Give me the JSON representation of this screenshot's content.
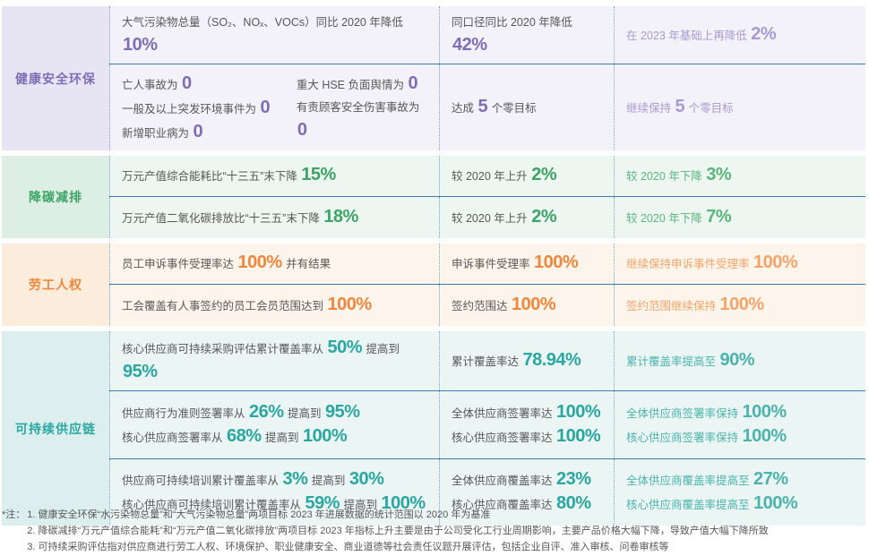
{
  "colors": {
    "row_divider": "#3d7dad",
    "column_divider_dotted": "#74a4cd",
    "body_text": "#595757"
  },
  "sections": [
    {
      "label": "健康安全环保",
      "colors": {
        "accent": "#7f6eb5",
        "light": "#a89bd1",
        "category_bg": "#e7e4f3",
        "row_bg": "#f3f2f9"
      },
      "rows": [
        {
          "goal": [
            [
              "大气污染物总量（SO₂、NOₓ、VOCs）同比 2020 年降低 ",
              {
                "n": "10%"
              }
            ]
          ],
          "progress": [
            [
              "同口径同比 2020 年降低 ",
              {
                "n": "42%"
              }
            ]
          ],
          "future": [
            [
              "在 2023 年基础上再降低 ",
              {
                "n": "2%"
              }
            ]
          ]
        },
        {
          "goal_left": [
            [
              "亡人事故为 ",
              {
                "n": "0"
              }
            ],
            [
              "一般及以上突发环境事件为 ",
              {
                "n": "0"
              }
            ],
            [
              "新增职业病为 ",
              {
                "n": "0"
              }
            ]
          ],
          "goal_right": [
            [
              "重大 HSE 负面舆情为 ",
              {
                "n": "0"
              }
            ],
            [
              "有责顾客安全伤害事故为 ",
              {
                "n": "0"
              }
            ]
          ],
          "progress": [
            [
              "达成 ",
              {
                "n": "5"
              },
              " 个零目标"
            ]
          ],
          "future": [
            [
              "继续保持 ",
              {
                "n": "5"
              },
              " 个零目标"
            ]
          ]
        }
      ]
    },
    {
      "label": "降碳减排",
      "colors": {
        "accent": "#3ca466",
        "light": "#5cb57f",
        "category_bg": "#ddefe4",
        "row_bg": "#edf6f0"
      },
      "rows": [
        {
          "goal": [
            [
              "万元产值综合能耗比“十三五”末下降 ",
              {
                "n": "15%"
              }
            ]
          ],
          "progress": [
            [
              "较 2020 年上升 ",
              {
                "n": "2%"
              }
            ]
          ],
          "future": [
            [
              "较 2020 年下降 ",
              {
                "n": "3%"
              }
            ]
          ]
        },
        {
          "goal": [
            [
              "万元产值二氧化碳排放比“十三五”末下降 ",
              {
                "n": "18%"
              }
            ]
          ],
          "progress": [
            [
              "较 2020 年上升 ",
              {
                "n": "2%"
              }
            ]
          ],
          "future": [
            [
              "较 2020 年下降 ",
              {
                "n": "7%"
              }
            ]
          ]
        }
      ]
    },
    {
      "label": "劳工人权",
      "colors": {
        "accent": "#f0863b",
        "light": "#f4a468",
        "category_bg": "#fcecdb",
        "row_bg": "#fdf5ec"
      },
      "rows": [
        {
          "goal": [
            [
              "员工申诉事件受理率达 ",
              {
                "n": "100%"
              },
              " 并有结果"
            ]
          ],
          "progress": [
            [
              "申诉事件受理率 ",
              {
                "n": "100%"
              }
            ]
          ],
          "future": [
            [
              "继续保持申诉事件受理率 ",
              {
                "n": "100%"
              }
            ]
          ]
        },
        {
          "goal": [
            [
              "工会覆盖有人事签约的员工会员范围达到 ",
              {
                "n": "100%"
              }
            ]
          ],
          "progress": [
            [
              "签约范围达 ",
              {
                "n": "100%"
              }
            ]
          ],
          "future": [
            [
              "签约范围继续保持 ",
              {
                "n": "100%"
              }
            ]
          ]
        }
      ]
    },
    {
      "label": "可持续供应链",
      "colors": {
        "accent": "#29a7a0",
        "light": "#4cb4ad",
        "category_bg": "#dcefee",
        "row_bg": "#ebf5f4"
      },
      "rows": [
        {
          "goal": [
            [
              "核心供应商可持续采购评估累计覆盖率从 ",
              {
                "n": "50%"
              },
              " 提高到 ",
              {
                "n": "95%"
              }
            ]
          ],
          "progress": [
            [
              "累计覆盖率达 ",
              {
                "n": "78.94%"
              }
            ]
          ],
          "future": [
            [
              "累计覆盖率提高至 ",
              {
                "n": "90%"
              }
            ]
          ]
        },
        {
          "goal": [
            [
              "供应商行为准则签署率从 ",
              {
                "n": "26%"
              },
              " 提高到 ",
              {
                "n": "95%"
              }
            ],
            [
              "核心供应商签署率从 ",
              {
                "n": "68%"
              },
              " 提高到 ",
              {
                "n": "100%"
              }
            ]
          ],
          "progress": [
            [
              "全体供应商签署率达 ",
              {
                "n": "100%"
              }
            ],
            [
              "核心供应商签署率达 ",
              {
                "n": "100%"
              }
            ]
          ],
          "future": [
            [
              "全体供应商签署率保持 ",
              {
                "n": "100%"
              }
            ],
            [
              "核心供应商签署率保持 ",
              {
                "n": "100%"
              }
            ]
          ]
        },
        {
          "goal": [
            [
              "供应商可持续培训累计覆盖率从 ",
              {
                "n": "3%"
              },
              " 提高到 ",
              {
                "n": "30%"
              }
            ],
            [
              "核心供应商可持续培训累计覆盖率从 ",
              {
                "n": "59%"
              },
              " 提高到 ",
              {
                "n": "100%"
              }
            ]
          ],
          "progress": [
            [
              "全体供应商覆盖率达 ",
              {
                "n": "23%"
              }
            ],
            [
              "核心供应商覆盖率达 ",
              {
                "n": "80%"
              }
            ]
          ],
          "future": [
            [
              "全体供应商覆盖率提高至 ",
              {
                "n": "27%"
              }
            ],
            [
              "核心供应商覆盖率提高至 ",
              {
                "n": "100%"
              }
            ]
          ]
        }
      ]
    }
  ],
  "notes": {
    "label": "*注：",
    "items": [
      "1. 健康安全环保“水污染物总量”和“大气污染物总量”两项目标 2023 年进展数据的统计范围以 2020 年为基准",
      "2. 降碳减排“万元产值综合能耗”和“万元产值二氧化碳排放”两项目标 2023 年指标上升主要是由于公司受化工行业周期影响，主要产品价格大幅下降，导致产值大幅下降所致",
      "3. 可持续采购评估指对供应商进行劳工人权、环境保护、职业健康安全、商业道德等社会责任议题开展评估，包括企业自评、准入审核、问卷审核等"
    ]
  }
}
